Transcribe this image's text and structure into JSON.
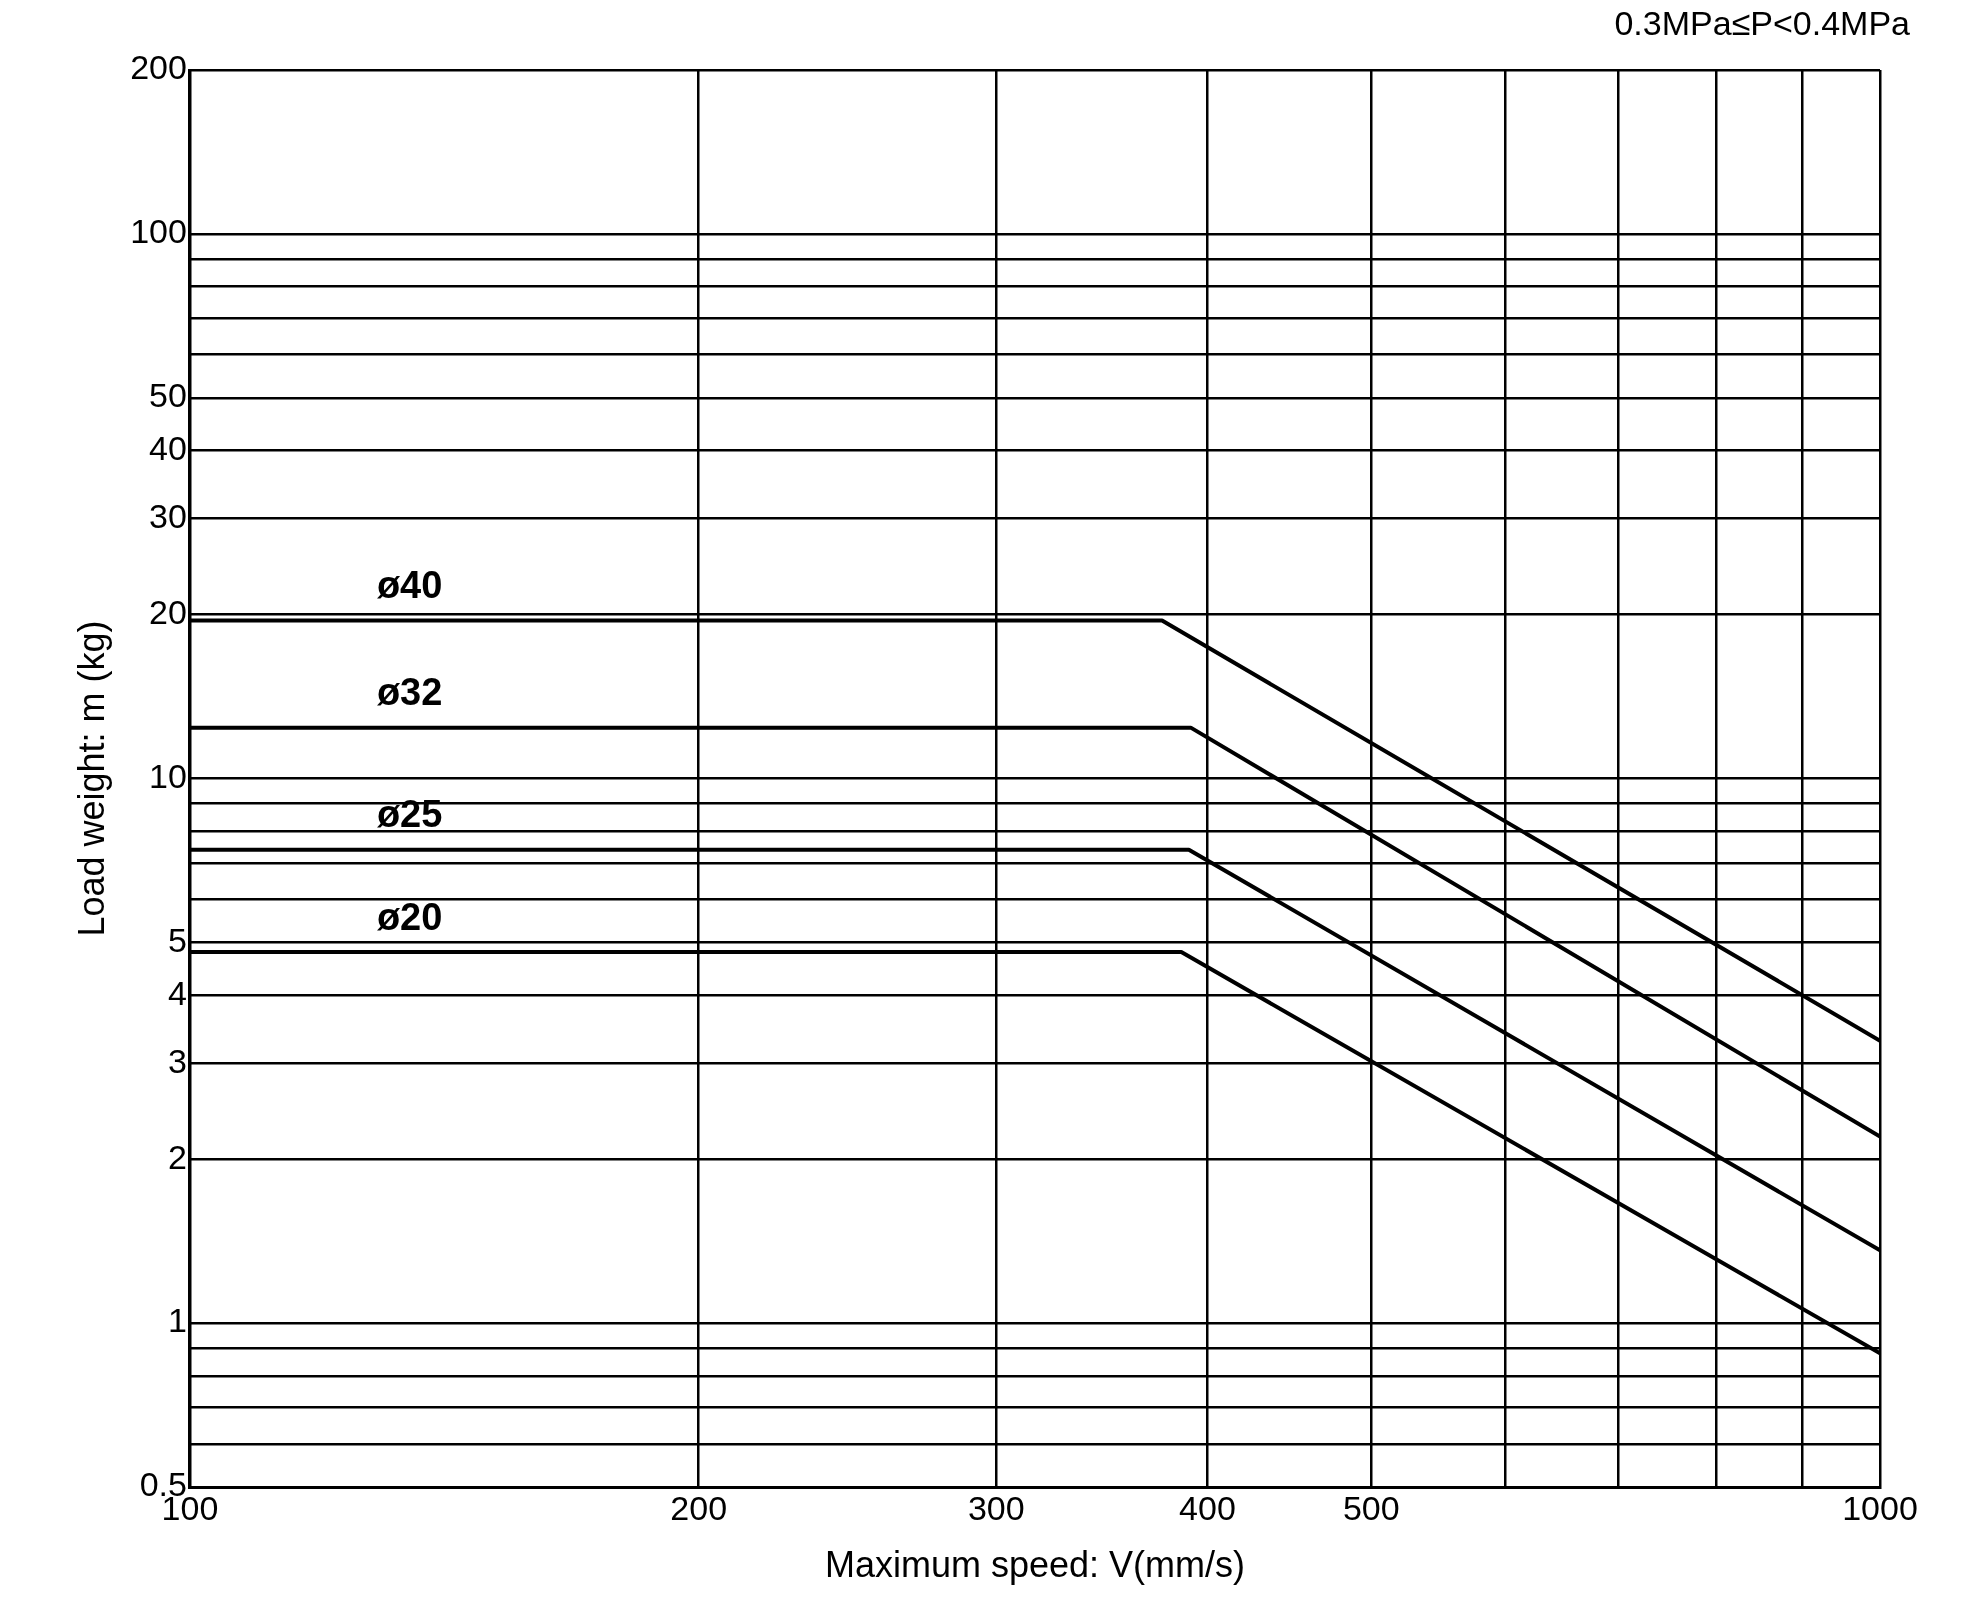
{
  "chart_data": {
    "type": "line",
    "subtitle": "0.3MPa≤P<0.4MPa",
    "xlabel": "Maximum speed: V(mm/s)",
    "ylabel": "Load weight: m (kg)",
    "log": "xy",
    "grid": true,
    "legend": false,
    "marker": "none",
    "line_style": "solid",
    "xlim": [
      100,
      1000
    ],
    "ylim": [
      0.5,
      200
    ],
    "xticks": [
      100,
      200,
      300,
      400,
      500,
      {
        "value": 600,
        "label": null
      },
      {
        "value": 700,
        "label": null
      },
      {
        "value": 800,
        "label": null
      },
      {
        "value": 900,
        "label": null
      },
      1000
    ],
    "yticks": [
      0.5,
      {
        "value": 0.6,
        "label": null
      },
      {
        "value": 0.7,
        "label": null
      },
      {
        "value": 0.8,
        "label": null
      },
      {
        "value": 0.9,
        "label": null
      },
      1,
      2,
      3,
      4,
      5,
      {
        "value": 6,
        "label": null
      },
      {
        "value": 7,
        "label": null
      },
      {
        "value": 8,
        "label": null
      },
      {
        "value": 9,
        "label": null
      },
      10,
      20,
      30,
      40,
      50,
      {
        "value": 60,
        "label": null
      },
      {
        "value": 70,
        "label": null
      },
      {
        "value": 80,
        "label": null
      },
      {
        "value": 90,
        "label": null
      },
      100,
      200
    ],
    "series": [
      {
        "name": "ø40",
        "color": "#000000",
        "x": [
          100,
          376,
          1000
        ],
        "values": [
          19.5,
          19.5,
          3.3
        ]
      },
      {
        "name": "ø32",
        "color": "#000000",
        "x": [
          100,
          391,
          1000
        ],
        "values": [
          12.4,
          12.4,
          2.2
        ]
      },
      {
        "name": "ø25",
        "color": "#000000",
        "x": [
          100,
          390,
          1000
        ],
        "values": [
          7.4,
          7.4,
          1.36
        ]
      },
      {
        "name": "ø20",
        "color": "#000000",
        "x": [
          100,
          386,
          1000
        ],
        "values": [
          4.8,
          4.8,
          0.88
        ]
      }
    ]
  }
}
